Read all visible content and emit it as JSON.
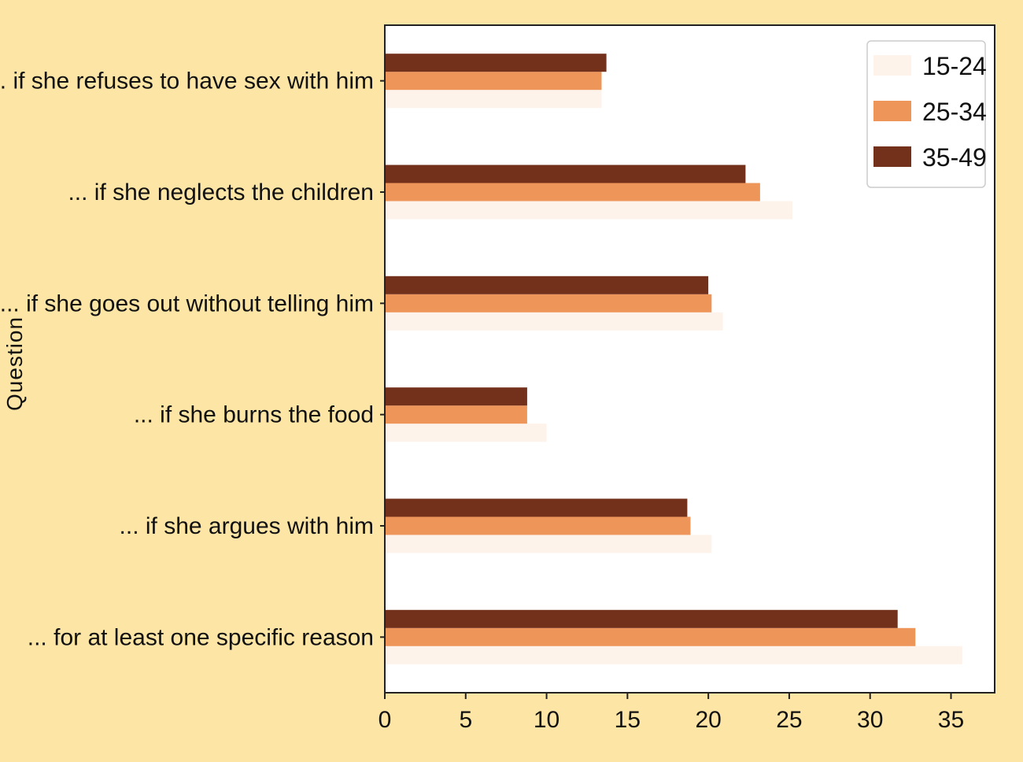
{
  "chart_data": {
    "type": "bar",
    "orientation": "horizontal",
    "ylabel": "Question",
    "xlabel": "",
    "xlim": [
      0,
      37.7
    ],
    "xticks": [
      0,
      5,
      10,
      15,
      20,
      25,
      30,
      35
    ],
    "grid": false,
    "legend_position": "top-right",
    "background": "#fde5a6",
    "plot_background": "#ffffff",
    "categories": [
      "... if she refuses to have sex with him",
      "... if she neglects the children",
      "... if she goes out without telling him",
      "... if she burns the food",
      "... if she argues with him",
      "... for at least one specific reason"
    ],
    "series": [
      {
        "name": "15-24",
        "color": "#fef3ea",
        "values": [
          13.4,
          25.2,
          20.9,
          10.0,
          20.2,
          35.7
        ]
      },
      {
        "name": "25-34",
        "color": "#ee955a",
        "values": [
          13.4,
          23.2,
          20.2,
          8.8,
          18.9,
          32.8
        ]
      },
      {
        "name": "35-49",
        "color": "#73301b",
        "values": [
          13.7,
          22.3,
          20.0,
          8.8,
          18.7,
          31.7
        ]
      }
    ]
  }
}
